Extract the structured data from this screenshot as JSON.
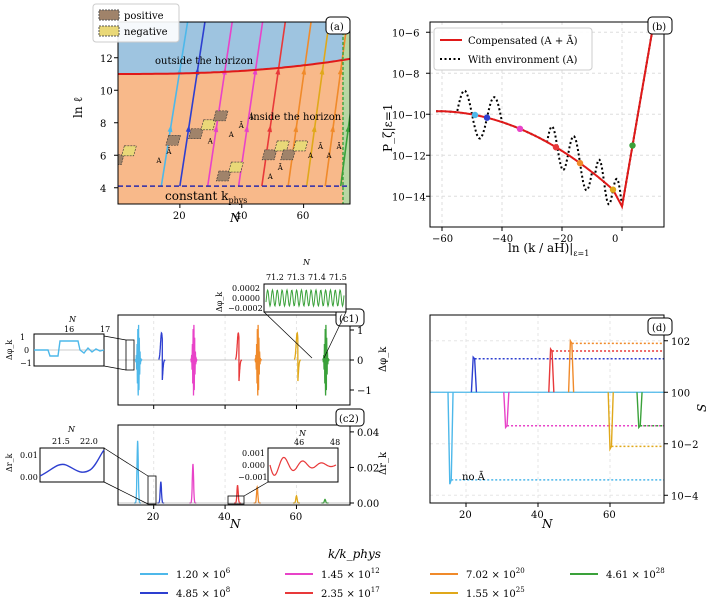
{
  "panels": {
    "a": {
      "label": "(a)",
      "xlabel": "N",
      "ylabel": "ln ℓ",
      "xticks": [
        "20",
        "40",
        "60"
      ],
      "yticks": [
        "4",
        "6",
        "8",
        "10",
        "12"
      ],
      "xlim": [
        0,
        75
      ],
      "ylim": [
        3,
        14.2
      ],
      "legend": [
        "positive",
        "negative"
      ],
      "region_outside": "outside the horizon",
      "region_inside": "inside the horizon",
      "constant_label": "constant k",
      "constant_sub": "phys",
      "constant_lnl": 4.1,
      "horizon_end_N": 74,
      "lines": [
        {
          "start_N": 14,
          "slope": 0.82
        },
        {
          "start_N": 20,
          "slope": 0.86
        },
        {
          "start_N": 29,
          "slope": 0.88
        },
        {
          "start_N": 39,
          "slope": 0.9
        },
        {
          "start_N": 46.5,
          "slope": 0.92
        },
        {
          "start_N": 55,
          "slope": 0.94
        },
        {
          "start_N": 61,
          "slope": 0.96
        },
        {
          "start_N": 67,
          "slope": 0.98
        },
        {
          "start_N": 72,
          "slope": 1.0
        }
      ],
      "boxes": [
        {
          "N": 15,
          "lnl": 5.6,
          "labels": [
            "A",
            "Ā"
          ]
        },
        {
          "N": 30,
          "lnl": 6.8,
          "labels": [
            "A"
          ]
        },
        {
          "N": 40,
          "lnl": 7.2,
          "labels": [
            "A",
            "Ā",
            "A"
          ]
        },
        {
          "N": 51,
          "lnl": 4.6,
          "labels": [
            "A",
            "Ā"
          ]
        },
        {
          "N": 64,
          "lnl": 5.9,
          "labels": [
            "A",
            "Ā"
          ]
        },
        {
          "N": 70,
          "lnl": 5.9,
          "labels": [
            "A",
            "Ā"
          ]
        }
      ]
    },
    "b": {
      "label": "(b)",
      "xlabel": "ln (k / aH)|",
      "xlabel_sub": "ε=1",
      "ylabel": "P_ζ|ε=1",
      "xticks": [
        "−60",
        "−40",
        "−20",
        "0"
      ],
      "yticks": [
        "10−14",
        "10−12",
        "10−10",
        "10−8",
        "10−6"
      ],
      "xlim": [
        -64,
        14
      ],
      "ylog_range": [
        -15.5,
        -5.5
      ],
      "legend": [
        "Compensated (A + Ā)",
        "With environment (A)"
      ],
      "dots_x": [
        -49,
        -45,
        -34,
        -22,
        -14,
        -3,
        3.5
      ]
    },
    "c1": {
      "label": "(c1)",
      "ylabel": "Δφ_k",
      "yticks": [
        "−1",
        "0",
        "1"
      ],
      "inset_left": {
        "xlabel": "N",
        "xticks": [
          "16",
          "17"
        ],
        "yticks": [
          "−1",
          "0",
          "1"
        ],
        "ylabel": "Δφ_k"
      },
      "inset_right": {
        "xlabel": "N",
        "xticks": [
          "71.2",
          "71.3",
          "71.4",
          "71.5"
        ],
        "yticks": [
          "0.0002",
          "0.0000",
          "−0.0002"
        ],
        "ylabel": "Δφ_k"
      }
    },
    "c2": {
      "label": "(c2)",
      "xlabel": "N",
      "ylabel": "Δr_k",
      "xticks": [
        "20",
        "40",
        "60"
      ],
      "yticks": [
        "0.00",
        "0.02",
        "0.04"
      ],
      "inset_left": {
        "xlabel": "N",
        "xticks": [
          "21.5",
          "22.0"
        ],
        "yticks": [
          "0.01",
          "0.00"
        ],
        "ylabel": "Δr_k"
      },
      "inset_right": {
        "xlabel": "N",
        "xticks": [
          "46",
          "48"
        ],
        "yticks": [
          "0.001",
          "0.000",
          "−0.001"
        ]
      }
    },
    "d": {
      "label": "(d)",
      "xlabel": "N",
      "ylabel": "S",
      "xticks": [
        "20",
        "40",
        "60"
      ],
      "yticks": [
        "10−4",
        "10−2",
        "100",
        "102"
      ],
      "annotation": "no Ā"
    }
  },
  "chart_data": {
    "type": "line",
    "title": "",
    "legend_title": "k/k_phys",
    "series": [
      {
        "name": "1.20 × 10^6",
        "mantissa": "1.20 × 10",
        "exp": "6",
        "color": "#4db8ea",
        "N_event": 15.5,
        "S_final": -3.4
      },
      {
        "name": "4.85 × 10^8",
        "mantissa": "4.85 × 10",
        "exp": "8",
        "color": "#2d3fd0",
        "N_event": 22,
        "S_final": 1.3
      },
      {
        "name": "1.45 × 10^12",
        "mantissa": "1.45 × 10",
        "exp": "12",
        "color": "#e843c8",
        "N_event": 31,
        "S_final": -1.3
      },
      {
        "name": "2.35 × 10^17",
        "mantissa": "2.35 × 10",
        "exp": "17",
        "color": "#e8393a",
        "N_event": 43.5,
        "S_final": 1.6
      },
      {
        "name": "7.02 × 10^20",
        "mantissa": "7.02 × 10",
        "exp": "20",
        "color": "#f08a2a",
        "N_event": 49,
        "S_final": 1.9
      },
      {
        "name": "1.55 × 10^25",
        "mantissa": "1.55 × 10",
        "exp": "25",
        "color": "#e0a81a",
        "N_event": 60,
        "S_final": -2.1
      },
      {
        "name": "4.61 × 10^28",
        "mantissa": "4.61 × 10",
        "exp": "28",
        "color": "#3aa13a",
        "N_event": 68,
        "S_final": -1.3
      }
    ]
  }
}
